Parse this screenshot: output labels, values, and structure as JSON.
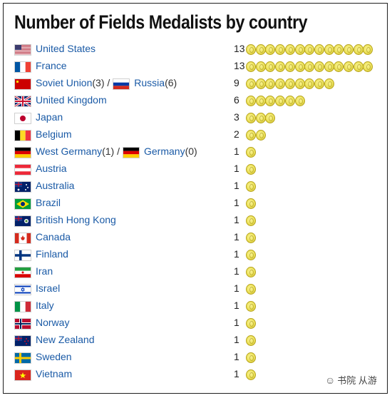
{
  "title": "Number of Fields Medalists by country",
  "watermark": "书院 从游",
  "chart_data": {
    "type": "bar",
    "title": "Number of Fields Medalists by country",
    "rows": [
      {
        "flag": "us",
        "parts": [
          {
            "name": "United States",
            "count": ""
          }
        ],
        "value": 13
      },
      {
        "flag": "fr",
        "parts": [
          {
            "name": "France",
            "count": ""
          }
        ],
        "value": 13
      },
      {
        "flag": "su",
        "flag2": "ru",
        "parts": [
          {
            "name": "Soviet Union",
            "count": " (3) / "
          },
          {
            "name": "Russia",
            "count": " (6)"
          }
        ],
        "value": 9
      },
      {
        "flag": "uk",
        "parts": [
          {
            "name": "United Kingdom",
            "count": ""
          }
        ],
        "value": 6
      },
      {
        "flag": "jp",
        "parts": [
          {
            "name": "Japan",
            "count": ""
          }
        ],
        "value": 3
      },
      {
        "flag": "be",
        "parts": [
          {
            "name": "Belgium",
            "count": ""
          }
        ],
        "value": 2
      },
      {
        "flag": "de",
        "flag2": "de",
        "parts": [
          {
            "name": "West Germany",
            "count": " (1) / "
          },
          {
            "name": "Germany",
            "count": " (0)"
          }
        ],
        "value": 1
      },
      {
        "flag": "at",
        "parts": [
          {
            "name": "Austria",
            "count": ""
          }
        ],
        "value": 1
      },
      {
        "flag": "au",
        "parts": [
          {
            "name": "Australia",
            "count": ""
          }
        ],
        "value": 1
      },
      {
        "flag": "br",
        "parts": [
          {
            "name": "Brazil",
            "count": ""
          }
        ],
        "value": 1
      },
      {
        "flag": "hk",
        "parts": [
          {
            "name": "British Hong Kong",
            "count": ""
          }
        ],
        "value": 1
      },
      {
        "flag": "ca",
        "parts": [
          {
            "name": "Canada",
            "count": ""
          }
        ],
        "value": 1
      },
      {
        "flag": "fi",
        "parts": [
          {
            "name": "Finland",
            "count": ""
          }
        ],
        "value": 1
      },
      {
        "flag": "ir",
        "parts": [
          {
            "name": "Iran",
            "count": ""
          }
        ],
        "value": 1
      },
      {
        "flag": "il",
        "parts": [
          {
            "name": "Israel",
            "count": ""
          }
        ],
        "value": 1
      },
      {
        "flag": "it",
        "parts": [
          {
            "name": "Italy",
            "count": ""
          }
        ],
        "value": 1
      },
      {
        "flag": "no",
        "parts": [
          {
            "name": "Norway",
            "count": ""
          }
        ],
        "value": 1
      },
      {
        "flag": "nz",
        "parts": [
          {
            "name": "New Zealand",
            "count": ""
          }
        ],
        "value": 1
      },
      {
        "flag": "se",
        "parts": [
          {
            "name": "Sweden",
            "count": ""
          }
        ],
        "value": 1
      },
      {
        "flag": "vn",
        "parts": [
          {
            "name": "Vietnam",
            "count": ""
          }
        ],
        "value": 1
      }
    ]
  }
}
